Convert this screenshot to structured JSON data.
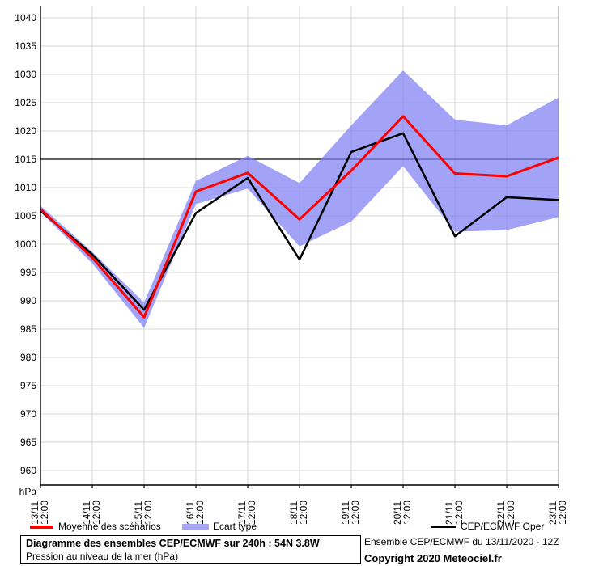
{
  "chart_data": {
    "type": "line",
    "title": "Diagramme des ensembles CEP/ECMWF sur 240h : 54N 3.8W",
    "subtitle": "Pression au niveau de la mer (hPa)",
    "ylabel": "hPa",
    "xlabel": "",
    "ylim": [
      957,
      1042
    ],
    "y_ticks": [
      960,
      965,
      970,
      975,
      980,
      985,
      990,
      995,
      1000,
      1005,
      1010,
      1015,
      1020,
      1025,
      1030,
      1035,
      1040
    ],
    "reference_line": 1015,
    "grid": true,
    "legend_position": "bottom",
    "x_dates": [
      "13/11",
      "14/11",
      "15/11",
      "16/11",
      "17/11",
      "18/11",
      "19/11",
      "20/11",
      "21/11",
      "22/11",
      "23/11"
    ],
    "x_time": "12:00",
    "series": [
      {
        "name": "Moyenne des scénarios",
        "color": "#ff0000",
        "values": [
          1006.2,
          997.6,
          987.1,
          1009.3,
          1012.6,
          1004.4,
          1013.0,
          1022.6,
          1012.5,
          1012.0,
          1015.3
        ]
      },
      {
        "name": "CEP/ECMWF Oper",
        "color": "#000000",
        "values": [
          1005.9,
          998.2,
          988.4,
          1005.5,
          1011.7,
          997.3,
          1016.3,
          1019.6,
          1001.4,
          1008.3,
          1007.8
        ]
      }
    ],
    "band": {
      "name": "Ecart type",
      "color": "#a5a5f6",
      "upper": [
        1006.8,
        998.6,
        989.7,
        1011.2,
        1015.6,
        1010.8,
        1021.0,
        1030.7,
        1022.0,
        1021.0,
        1025.9
      ],
      "lower": [
        1005.7,
        996.6,
        985.2,
        1007.1,
        1009.8,
        999.6,
        1004.0,
        1013.8,
        1002.2,
        1002.5,
        1004.8
      ]
    },
    "colors": {
      "grid": "#d4d4d4",
      "border": "#8a8a8a",
      "axis": "#000000",
      "reference": "#000000",
      "band_fill_rgba": "rgba(126,126,242,0.72)"
    }
  },
  "footer": {
    "title": "Diagramme des ensembles CEP/ECMWF sur 240h : 54N 3.8W",
    "subtitle": "Pression au niveau de la mer (hPa)",
    "run_info": "Ensemble CEP/ECMWF du 13/11/2020 - 12Z",
    "copyright": "Copyright 2020 Meteociel.fr"
  }
}
